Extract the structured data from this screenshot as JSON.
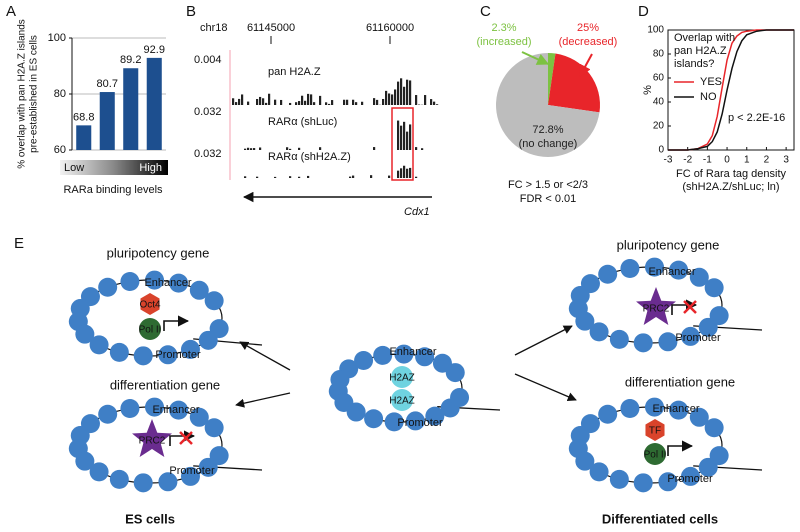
{
  "panel_labels": [
    "A",
    "B",
    "C",
    "D",
    "E"
  ],
  "chart_data": [
    {
      "type": "bar",
      "ylabel": [
        "% overlap with pan H2A.Z islands",
        "pre-established in ES cells"
      ],
      "categories": [
        null,
        null,
        null,
        null
      ],
      "values": [
        68.8,
        80.7,
        89.2,
        92.9
      ],
      "color": "#1d4f8f",
      "ylim": [
        60,
        100
      ],
      "yticks": [
        60,
        80,
        100
      ],
      "grid": true,
      "gradient_labels": [
        "Low",
        "High"
      ],
      "xlabel": "RARa binding levels"
    },
    {
      "type": "pie",
      "categories": [
        "(increased)",
        "(decreased)",
        "(no change)"
      ],
      "values": [
        2.3,
        25,
        72.8
      ],
      "value_labels": [
        "2.3%",
        "25%",
        "72.8%"
      ],
      "colors": [
        "#7dc242",
        "#e8252a",
        "#bdbdbd"
      ],
      "footnotes": [
        "FC > 1.5 or <2/3",
        "FDR < 0.01"
      ]
    },
    {
      "type": "line",
      "ylabel": "%",
      "xlabel": [
        "FC of Rara tag density",
        "(shH2A.Z/shLuc; ln)"
      ],
      "x": [
        -3,
        -2,
        -1.5,
        -1,
        -0.75,
        -0.5,
        -0.25,
        0,
        0.25,
        0.5,
        0.75,
        1,
        1.5,
        2,
        3,
        3.4
      ],
      "series": [
        {
          "name": "YES",
          "color": "#e8252a",
          "values": [
            0,
            0,
            1,
            5,
            12,
            28,
            52,
            75,
            89,
            95,
            98,
            99,
            100,
            100,
            100,
            100
          ]
        },
        {
          "name": "NO",
          "color": "#111111",
          "values": [
            0,
            0,
            1,
            3,
            7,
            15,
            30,
            50,
            68,
            82,
            91,
            96,
            99,
            100,
            100,
            100
          ]
        }
      ],
      "xlim": [
        -3,
        3.4
      ],
      "xticks": [
        -3,
        -2,
        -1,
        0,
        1,
        2,
        3
      ],
      "ylim": [
        0,
        100
      ],
      "yticks": [
        0,
        20,
        40,
        60,
        80,
        100
      ],
      "legend_title": [
        "Overlap with",
        "pan H2A.Z",
        "islands?"
      ],
      "legend": "upper left",
      "annotation": "p < 2.2E-16"
    }
  ],
  "tracks": {
    "chromosome": "chr18",
    "coordinates": [
      "61145000",
      "61160000"
    ],
    "rows": [
      {
        "name": "pan H2A.Z",
        "scale": "0.004"
      },
      {
        "name": "RARα (shLuc)",
        "scale": "0.032"
      },
      {
        "name": "RARα (shH2A.Z)",
        "scale": "0.032"
      }
    ],
    "gene": "Cdx1"
  },
  "diagram": {
    "es_pluripotency": {
      "title": "pluripotency gene",
      "enhancer": "Enhancer",
      "factor": "Oct4",
      "polymerase": "Pol II",
      "promoter": "Promoter"
    },
    "es_differentiation": {
      "title": "differentiation gene",
      "enhancer": "Enhancer",
      "complex": "PRC2",
      "promoter": "Promoter"
    },
    "center": {
      "enhancer": "Enhancer",
      "variant_1": "H2AZ",
      "variant_2": "H2AZ",
      "promoter": "Promoter"
    },
    "diff_pluripotency": {
      "title": "pluripotency gene",
      "enhancer": "Enhancer",
      "complex": "PRC2",
      "promoter": "Promoter"
    },
    "diff_differentiation": {
      "title": "differentiation gene",
      "enhancer": "Enhancer",
      "factor": "TF",
      "polymerase": "Pol II",
      "promoter": "Promoter"
    },
    "footers": [
      "ES cells",
      "Differentiated cells"
    ]
  }
}
